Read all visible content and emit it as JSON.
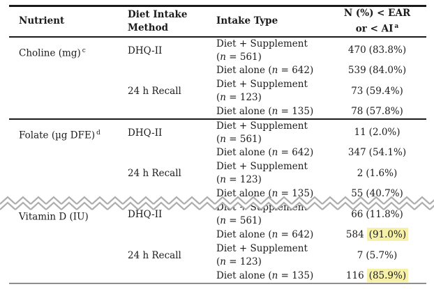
{
  "colors": {
    "highlight": "#f6f0a8",
    "zigzag": "#aeaeae",
    "text": "#1b1b1b",
    "rule_dark": "#1a1a1a",
    "rule_bottom": "#8f8f8f"
  },
  "header": {
    "col1": "Nutrient",
    "col2_line1": "Diet Intake",
    "col2_line2": "Method",
    "col3": "Intake Type",
    "col4_line1": "N (%) < EAR",
    "col4_line2": "or < AI",
    "col4_sup": "a"
  },
  "sections": [
    {
      "nutrient": "Choline (mg)",
      "nutrient_sup": "c",
      "groups": [
        {
          "method": "DHQ-II",
          "rows": [
            {
              "type_line1": "Diet + Supplement",
              "type_line2": "(n = 561)",
              "count": "470",
              "pct": "(83.8%)",
              "highlight": false
            },
            {
              "type_line1": "Diet alone (n = 642)",
              "type_line2": "",
              "count": "539",
              "pct": "(84.0%)",
              "highlight": false
            }
          ]
        },
        {
          "method": "24 h Recall",
          "rows": [
            {
              "type_line1": "Diet + Supplement",
              "type_line2": "(n = 123)",
              "count": "73",
              "pct": "(59.4%)",
              "highlight": false
            },
            {
              "type_line1": "Diet alone (n = 135)",
              "type_line2": "",
              "count": "78",
              "pct": "(57.8%)",
              "highlight": false
            }
          ]
        }
      ]
    },
    {
      "nutrient": "Folate (µg DFE)",
      "nutrient_sup": "d",
      "groups": [
        {
          "method": "DHQ-II",
          "rows": [
            {
              "type_line1": "Diet + Supplement",
              "type_line2": "(n = 561)",
              "count": "11",
              "pct": "(2.0%)",
              "highlight": false
            },
            {
              "type_line1": "Diet alone (n = 642)",
              "type_line2": "",
              "count": "347",
              "pct": "(54.1%)",
              "highlight": false
            }
          ]
        },
        {
          "method": "24 h Recall",
          "rows": [
            {
              "type_line1": "Diet + Supplement",
              "type_line2": "(n = 123)",
              "count": "2",
              "pct": "(1.6%)",
              "highlight": false
            },
            {
              "type_line1": "Diet alone (n = 135)",
              "type_line2": "",
              "count": "55",
              "pct": "(40.7%)",
              "highlight": false
            }
          ]
        }
      ]
    },
    {
      "nutrient": "Vitamin D (IU)",
      "nutrient_sup": "",
      "groups": [
        {
          "method": "DHQ-II",
          "rows": [
            {
              "type_line1": "Diet + Supplement",
              "type_line2": "(n = 561)",
              "count": "66",
              "pct": "(11.8%)",
              "highlight": false
            },
            {
              "type_line1": "Diet alone (n = 642)",
              "type_line2": "",
              "count": "584",
              "pct": "(91.0%)",
              "highlight": true
            }
          ]
        },
        {
          "method": "24 h Recall",
          "rows": [
            {
              "type_line1": "Diet + Supplement",
              "type_line2": "(n = 123)",
              "count": "7",
              "pct": "(5.7%)",
              "highlight": false
            },
            {
              "type_line1": "Diet alone (n = 135)",
              "type_line2": "",
              "count": "116",
              "pct": "(85.9%)",
              "highlight": true
            }
          ]
        }
      ]
    }
  ]
}
